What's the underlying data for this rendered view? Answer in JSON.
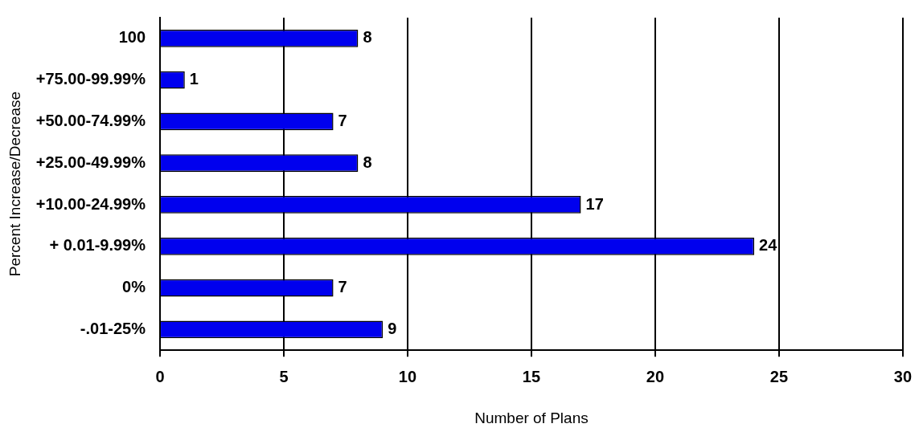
{
  "chart_data": {
    "type": "bar",
    "orientation": "horizontal",
    "xlabel": "Number of Plans",
    "ylabel": "Percent Increase/Decrease",
    "categories": [
      "100",
      "+75.00-99.99%",
      "+50.00-74.99%",
      "+25.00-49.99%",
      "+10.00-24.99%",
      "+ 0.01-9.99%",
      "0%",
      "-.01-25%"
    ],
    "values": [
      8,
      1,
      7,
      8,
      17,
      24,
      7,
      9
    ],
    "color": "#0000ee",
    "xlim": [
      0,
      30
    ],
    "xticks": [
      0,
      5,
      10,
      15,
      20,
      25,
      30
    ],
    "grid": "x",
    "data_labels": true,
    "legend": false
  }
}
